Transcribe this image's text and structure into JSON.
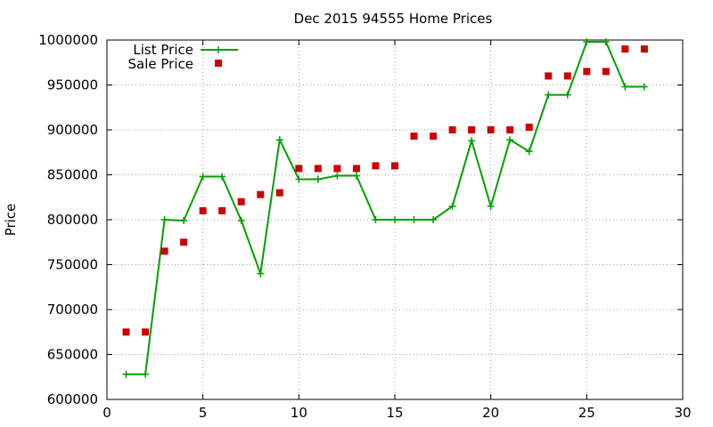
{
  "chart_data": {
    "type": "line",
    "title": "Dec 2015 94555 Home Prices",
    "xlabel": "",
    "ylabel": "Price",
    "xlim": [
      0,
      30
    ],
    "ylim": [
      600000,
      1000000
    ],
    "x_ticks": [
      0,
      5,
      10,
      15,
      20,
      25,
      30
    ],
    "y_ticks": [
      600000,
      650000,
      700000,
      750000,
      800000,
      850000,
      900000,
      950000,
      1000000
    ],
    "grid": true,
    "legend_position": "top-left",
    "colors": {
      "list": "#00a000",
      "sale": "#cc0000"
    },
    "series": [
      {
        "name": "List Price",
        "style": "line-plus",
        "x": [
          1,
          2,
          3,
          4,
          5,
          6,
          7,
          8,
          9,
          10,
          11,
          12,
          13,
          14,
          15,
          16,
          17,
          18,
          19,
          20,
          21,
          22,
          23,
          24,
          25,
          26,
          27,
          28
        ],
        "values": [
          628000,
          628000,
          800000,
          799000,
          848000,
          848000,
          799000,
          740000,
          889000,
          845000,
          845000,
          849000,
          849000,
          800000,
          800000,
          800000,
          800000,
          815000,
          888000,
          815000,
          889000,
          876000,
          939000,
          939000,
          998000,
          998000,
          948000,
          948000
        ]
      },
      {
        "name": "Sale Price",
        "style": "square-points",
        "x": [
          1,
          2,
          3,
          4,
          5,
          6,
          7,
          8,
          9,
          10,
          11,
          12,
          13,
          14,
          15,
          16,
          17,
          18,
          19,
          20,
          21,
          22,
          23,
          24,
          25,
          26,
          27,
          28
        ],
        "values": [
          675000,
          675000,
          765000,
          775000,
          810000,
          810000,
          820000,
          828000,
          830000,
          857000,
          857000,
          857000,
          857000,
          860000,
          860000,
          893000,
          893000,
          900000,
          900000,
          900000,
          900000,
          903000,
          960000,
          960000,
          965000,
          965000,
          990000,
          990000
        ]
      }
    ]
  }
}
